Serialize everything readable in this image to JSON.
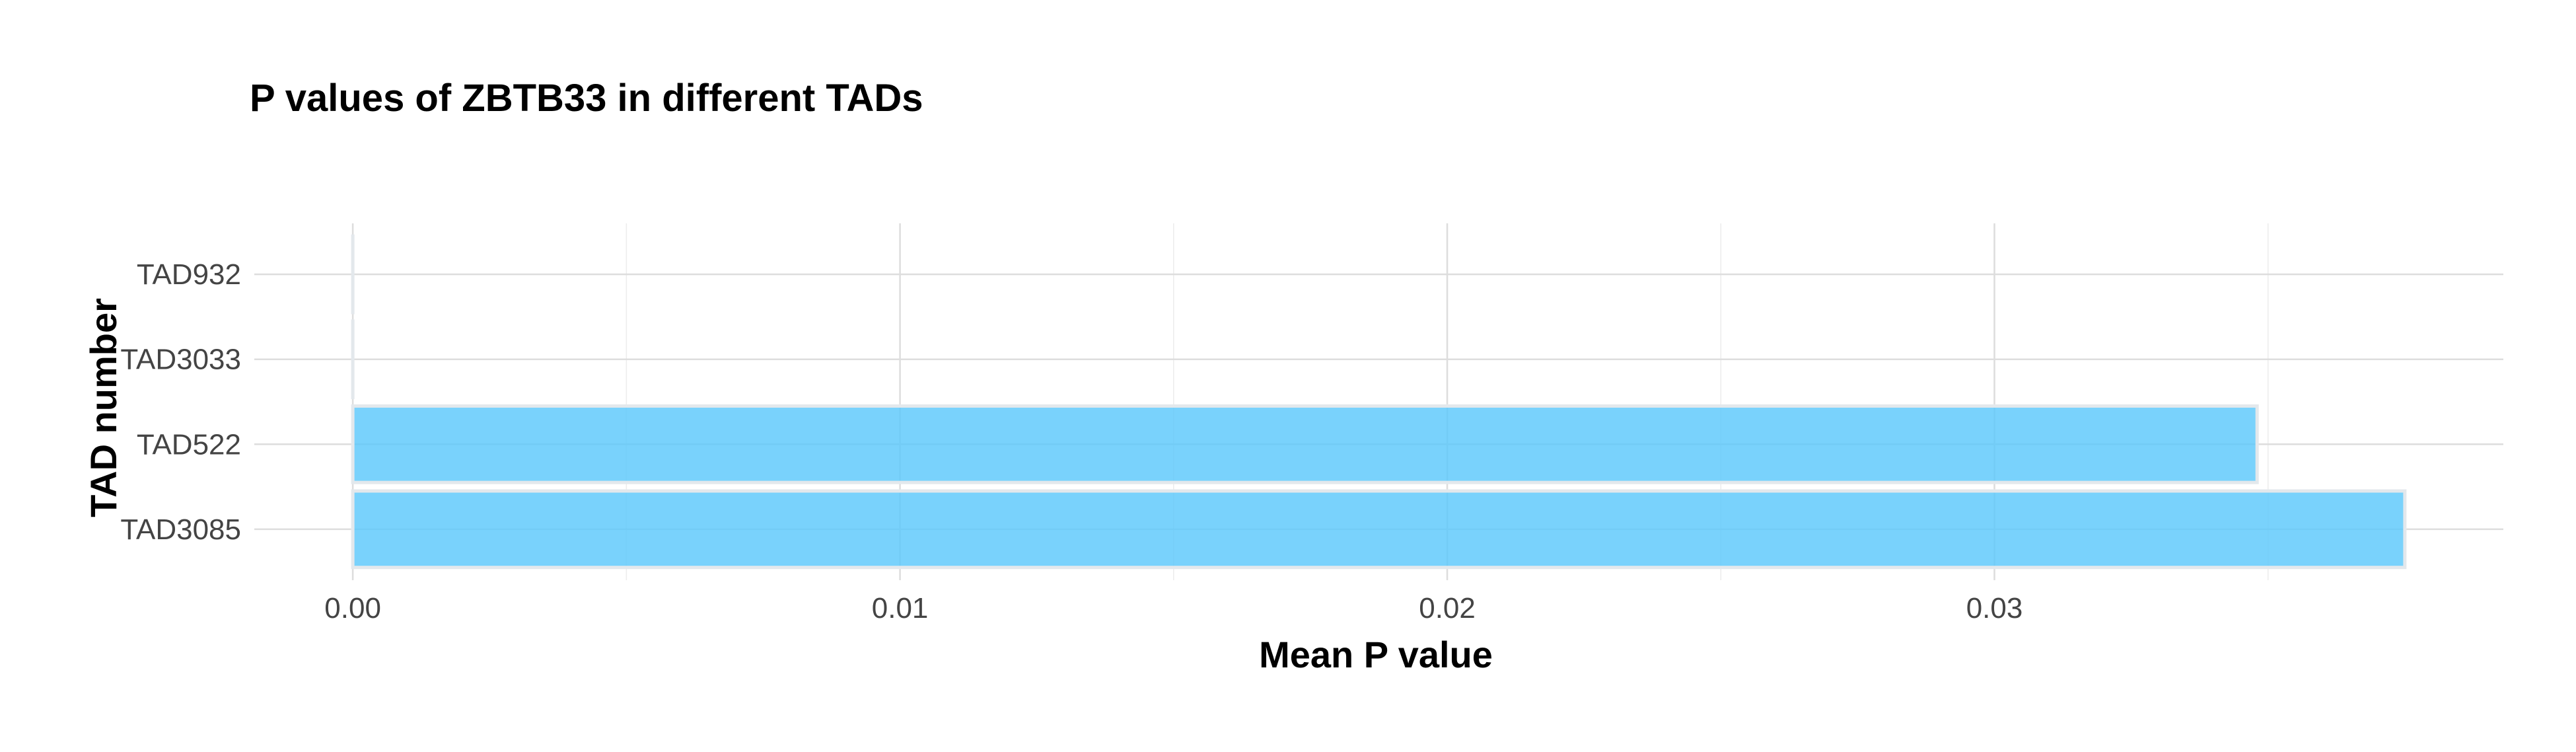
{
  "chart_data": {
    "type": "bar",
    "orientation": "horizontal",
    "title": "P values of ZBTB33 in different TADs",
    "xlabel": "Mean P value",
    "ylabel": "TAD number",
    "categories": [
      "TAD932",
      "TAD3033",
      "TAD522",
      "TAD3085"
    ],
    "values": [
      0.0,
      0.0,
      0.0348,
      0.0375
    ],
    "xlim": [
      -0.0018,
      0.0393
    ],
    "xticks": [
      0.0,
      0.01,
      0.02,
      0.03
    ],
    "xtick_labels": [
      "0.00",
      "0.01",
      "0.02",
      "0.03"
    ],
    "grid": true,
    "bar_color": "#5BC8FB",
    "bar_edge_color": "#E3E8EC"
  }
}
